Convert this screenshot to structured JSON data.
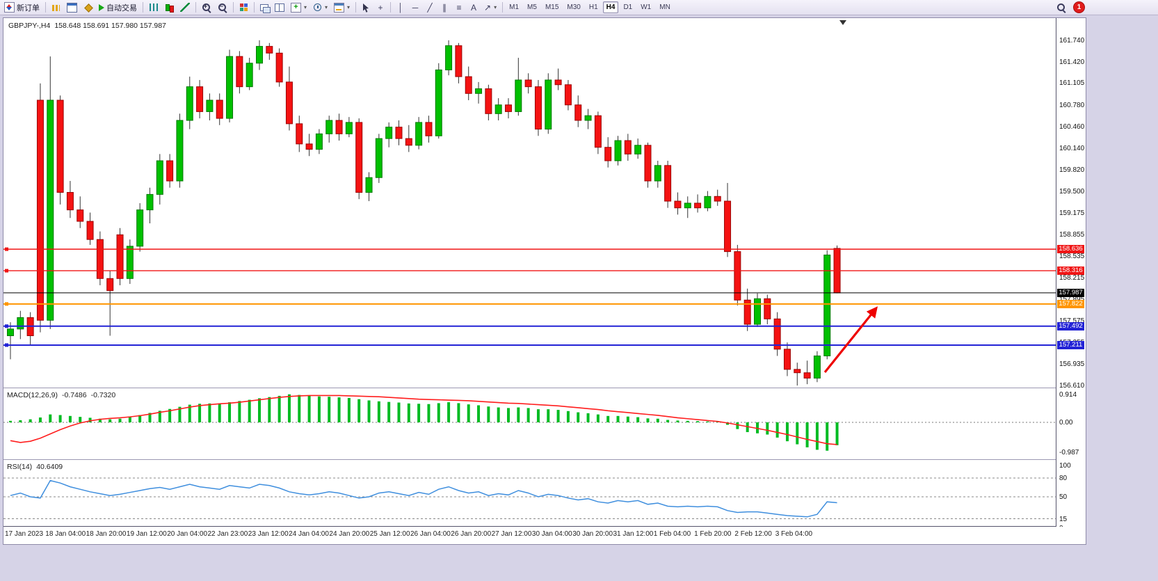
{
  "toolbar": {
    "new_order": "新订单",
    "autotrade": "自动交易",
    "timeframes": [
      "M1",
      "M5",
      "M15",
      "M30",
      "H1",
      "H4",
      "D1",
      "W1",
      "MN"
    ],
    "active_timeframe": "H4",
    "notification_badge": "1"
  },
  "icons": {
    "dropdown": "▾",
    "vline": "│",
    "hline_tool": "─",
    "trendline": "╱",
    "channel": "∥",
    "fibonacci": "≡",
    "text_tool": "A",
    "arrow_tool": "↗",
    "crosshair": "+",
    "zoom_in_sign": "+",
    "zoom_out_sign": "−"
  },
  "chart": {
    "symbol_period": "GBPJPY-,H4",
    "ohlc": "158.648 158.691 157.980 157.987",
    "price_ticks": [
      "161.740",
      "161.420",
      "161.105",
      "160.780",
      "160.460",
      "160.140",
      "159.820",
      "159.500",
      "159.175",
      "158.855",
      "158.535",
      "158.215",
      "157.895",
      "157.575",
      "157.255",
      "156.935",
      "156.610"
    ],
    "hlines": [
      {
        "price": 158.636,
        "label": "158.636",
        "color": "#F01515",
        "width": 1.4
      },
      {
        "price": 158.316,
        "label": "158.316",
        "color": "#F01515",
        "width": 1.4
      },
      {
        "price": 157.822,
        "label": "157.822",
        "color": "#FF9500",
        "width": 2
      },
      {
        "price": 157.492,
        "label": "157.492",
        "color": "#2323D6",
        "width": 2
      },
      {
        "price": 157.211,
        "label": "157.211",
        "color": "#2323D6",
        "width": 2
      }
    ],
    "bid": {
      "price": 157.987,
      "label": "157.987",
      "color": "#000000"
    },
    "time_labels": [
      "17 Jan 2023",
      "18 Jan 04:00",
      "18 Jan 20:00",
      "19 Jan 12:00",
      "20 Jan 04:00",
      "22 Jan 23:00",
      "23 Jan 12:00",
      "24 Jan 04:00",
      "24 Jan 20:00",
      "25 Jan 12:00",
      "26 Jan 04:00",
      "26 Jan 20:00",
      "27 Jan 12:00",
      "30 Jan 04:00",
      "30 Jan 20:00",
      "31 Jan 12:00",
      "1 Feb 04:00",
      "1 Feb 20:00",
      "2 Feb 12:00",
      "3 Feb 04:00"
    ],
    "candles": [
      [
        157.35,
        157.55,
        157.0,
        157.45
      ],
      [
        157.45,
        157.72,
        157.3,
        157.62
      ],
      [
        157.62,
        157.7,
        157.22,
        157.35
      ],
      [
        160.85,
        161.1,
        157.4,
        157.58
      ],
      [
        157.58,
        161.5,
        157.45,
        160.85
      ],
      [
        160.85,
        160.92,
        159.3,
        159.48
      ],
      [
        159.48,
        159.65,
        159.1,
        159.22
      ],
      [
        159.22,
        159.42,
        158.95,
        159.05
      ],
      [
        159.05,
        159.18,
        158.7,
        158.78
      ],
      [
        158.78,
        158.9,
        158.1,
        158.2
      ],
      [
        158.2,
        158.32,
        157.35,
        158.02
      ],
      [
        158.85,
        158.95,
        158.1,
        158.2
      ],
      [
        158.2,
        158.78,
        158.12,
        158.68
      ],
      [
        158.68,
        159.32,
        158.6,
        159.22
      ],
      [
        159.22,
        159.55,
        159.02,
        159.45
      ],
      [
        159.45,
        160.05,
        159.3,
        159.95
      ],
      [
        159.95,
        160.05,
        159.55,
        159.65
      ],
      [
        159.65,
        160.65,
        159.55,
        160.55
      ],
      [
        160.55,
        161.2,
        160.42,
        161.05
      ],
      [
        161.05,
        161.15,
        160.58,
        160.68
      ],
      [
        160.68,
        160.95,
        160.55,
        160.85
      ],
      [
        160.85,
        160.95,
        160.48,
        160.58
      ],
      [
        160.58,
        161.6,
        160.52,
        161.5
      ],
      [
        161.5,
        161.58,
        160.95,
        161.05
      ],
      [
        161.05,
        161.48,
        161.0,
        161.4
      ],
      [
        161.4,
        161.74,
        161.3,
        161.65
      ],
      [
        161.65,
        161.7,
        161.45,
        161.55
      ],
      [
        161.55,
        161.62,
        161.05,
        161.12
      ],
      [
        161.12,
        161.35,
        160.4,
        160.5
      ],
      [
        160.5,
        160.62,
        160.08,
        160.2
      ],
      [
        160.2,
        160.35,
        160.02,
        160.12
      ],
      [
        160.12,
        160.42,
        160.05,
        160.35
      ],
      [
        160.35,
        160.62,
        160.22,
        160.55
      ],
      [
        160.55,
        160.65,
        160.25,
        160.35
      ],
      [
        160.35,
        160.6,
        160.3,
        160.52
      ],
      [
        160.52,
        160.58,
        159.38,
        159.48
      ],
      [
        159.48,
        159.78,
        159.35,
        159.7
      ],
      [
        159.7,
        160.35,
        159.62,
        160.28
      ],
      [
        160.28,
        160.52,
        160.15,
        160.45
      ],
      [
        160.45,
        160.55,
        160.18,
        160.28
      ],
      [
        160.28,
        160.48,
        160.08,
        160.18
      ],
      [
        160.18,
        160.6,
        160.12,
        160.52
      ],
      [
        160.52,
        160.62,
        160.22,
        160.32
      ],
      [
        160.32,
        161.4,
        160.28,
        161.3
      ],
      [
        161.3,
        161.74,
        161.22,
        161.66
      ],
      [
        161.66,
        161.7,
        161.1,
        161.2
      ],
      [
        161.2,
        161.35,
        160.85,
        160.95
      ],
      [
        160.95,
        161.12,
        160.8,
        161.02
      ],
      [
        161.02,
        161.08,
        160.55,
        160.65
      ],
      [
        160.65,
        160.88,
        160.55,
        160.78
      ],
      [
        160.78,
        160.88,
        160.58,
        160.68
      ],
      [
        160.68,
        161.48,
        160.62,
        161.15
      ],
      [
        161.15,
        161.25,
        160.95,
        161.05
      ],
      [
        161.05,
        161.15,
        160.32,
        160.42
      ],
      [
        160.42,
        161.25,
        160.35,
        161.15
      ],
      [
        161.15,
        161.32,
        161.0,
        161.08
      ],
      [
        161.08,
        161.15,
        160.7,
        160.78
      ],
      [
        160.78,
        160.92,
        160.45,
        160.55
      ],
      [
        160.55,
        160.72,
        160.42,
        160.62
      ],
      [
        160.62,
        160.68,
        160.05,
        160.15
      ],
      [
        160.15,
        160.3,
        159.85,
        159.95
      ],
      [
        159.95,
        160.32,
        159.88,
        160.25
      ],
      [
        160.25,
        160.35,
        159.95,
        160.05
      ],
      [
        160.05,
        160.28,
        159.98,
        160.18
      ],
      [
        160.18,
        160.22,
        159.55,
        159.65
      ],
      [
        159.65,
        159.95,
        159.55,
        159.88
      ],
      [
        159.88,
        159.95,
        159.25,
        159.35
      ],
      [
        159.35,
        159.48,
        159.15,
        159.25
      ],
      [
        159.25,
        159.42,
        159.1,
        159.32
      ],
      [
        159.32,
        159.45,
        159.18,
        159.25
      ],
      [
        159.25,
        159.5,
        159.2,
        159.42
      ],
      [
        159.42,
        159.52,
        159.28,
        159.35
      ],
      [
        159.35,
        159.62,
        158.52,
        158.6
      ],
      [
        158.6,
        158.7,
        157.8,
        157.88
      ],
      [
        157.88,
        158.05,
        157.42,
        157.52
      ],
      [
        157.52,
        157.98,
        157.48,
        157.9
      ],
      [
        157.9,
        157.96,
        157.52,
        157.6
      ],
      [
        157.6,
        157.7,
        157.05,
        157.15
      ],
      [
        157.15,
        157.25,
        156.75,
        156.85
      ],
      [
        156.85,
        156.95,
        156.61,
        156.8
      ],
      [
        156.8,
        156.98,
        156.63,
        156.72
      ],
      [
        156.72,
        157.12,
        156.66,
        157.05
      ],
      [
        157.05,
        158.62,
        157.0,
        158.55
      ],
      [
        158.648,
        158.691,
        157.98,
        157.987
      ]
    ]
  },
  "macd": {
    "name": "MACD(12,26,9)",
    "value_main": "-0.7486",
    "value_signal": "-0.7320",
    "scale": [
      "0.914",
      "0.00",
      "-0.987"
    ],
    "histogram": [
      0.05,
      0.07,
      0.1,
      0.16,
      0.26,
      0.24,
      0.21,
      0.18,
      0.15,
      0.12,
      0.1,
      0.12,
      0.18,
      0.24,
      0.31,
      0.38,
      0.44,
      0.51,
      0.58,
      0.61,
      0.62,
      0.62,
      0.66,
      0.7,
      0.74,
      0.79,
      0.83,
      0.87,
      0.92,
      0.9,
      0.87,
      0.85,
      0.84,
      0.82,
      0.8,
      0.76,
      0.72,
      0.69,
      0.67,
      0.65,
      0.62,
      0.61,
      0.6,
      0.63,
      0.66,
      0.63,
      0.59,
      0.56,
      0.52,
      0.49,
      0.47,
      0.49,
      0.47,
      0.43,
      0.43,
      0.41,
      0.37,
      0.33,
      0.3,
      0.26,
      0.21,
      0.21,
      0.19,
      0.17,
      0.13,
      0.12,
      0.08,
      0.06,
      0.05,
      0.04,
      0.03,
      0.02,
      -0.08,
      -0.22,
      -0.32,
      -0.36,
      -0.4,
      -0.5,
      -0.62,
      -0.72,
      -0.82,
      -0.9,
      -0.93,
      -0.75
    ],
    "signal": [
      -0.6,
      -0.66,
      -0.62,
      -0.52,
      -0.38,
      -0.24,
      -0.12,
      -0.02,
      0.05,
      0.1,
      0.13,
      0.15,
      0.18,
      0.22,
      0.27,
      0.33,
      0.38,
      0.44,
      0.5,
      0.55,
      0.58,
      0.61,
      0.63,
      0.66,
      0.7,
      0.74,
      0.78,
      0.82,
      0.85,
      0.87,
      0.88,
      0.88,
      0.88,
      0.88,
      0.87,
      0.86,
      0.85,
      0.84,
      0.82,
      0.8,
      0.78,
      0.76,
      0.75,
      0.74,
      0.73,
      0.72,
      0.71,
      0.69,
      0.67,
      0.65,
      0.63,
      0.62,
      0.6,
      0.58,
      0.56,
      0.54,
      0.51,
      0.48,
      0.45,
      0.42,
      0.38,
      0.35,
      0.32,
      0.29,
      0.26,
      0.23,
      0.19,
      0.15,
      0.12,
      0.09,
      0.06,
      0.03,
      -0.02,
      -0.08,
      -0.14,
      -0.2,
      -0.26,
      -0.33,
      -0.4,
      -0.48,
      -0.56,
      -0.63,
      -0.7,
      -0.73
    ]
  },
  "rsi": {
    "name": "RSI(14)",
    "value": "40.6409",
    "scale": [
      "100",
      "80",
      "50",
      "15",
      "0"
    ],
    "levels": [
      80,
      50,
      15
    ],
    "values": [
      52,
      56,
      50,
      48,
      76,
      72,
      66,
      62,
      58,
      55,
      52,
      54,
      57,
      60,
      63,
      65,
      62,
      66,
      70,
      66,
      64,
      62,
      68,
      66,
      64,
      70,
      68,
      64,
      58,
      55,
      53,
      55,
      58,
      56,
      52,
      48,
      50,
      56,
      58,
      55,
      52,
      57,
      54,
      62,
      66,
      60,
      56,
      58,
      52,
      55,
      53,
      60,
      56,
      50,
      54,
      52,
      48,
      45,
      47,
      42,
      40,
      44,
      42,
      44,
      38,
      40,
      35,
      34,
      35,
      34,
      35,
      34,
      28,
      25,
      26,
      26,
      24,
      22,
      20,
      19,
      18,
      22,
      42,
      40.6
    ]
  },
  "colors": {
    "bull": "#00C000",
    "bull_edge": "#067806",
    "bear": "#F51212",
    "bear_edge": "#9A0606",
    "wick": "#333333",
    "macd_hist": "#00BB22",
    "macd_signal": "#FF1D1D",
    "rsi_line": "#3E8EDE",
    "arrow": "#EE0000",
    "frame": "#D6D3E7"
  }
}
